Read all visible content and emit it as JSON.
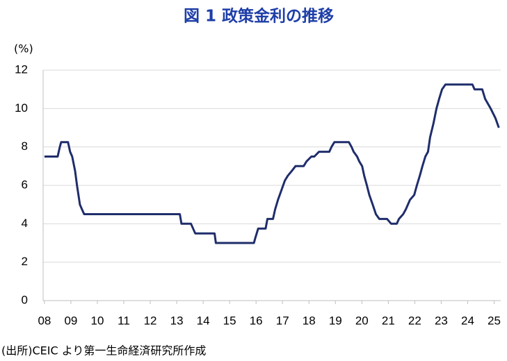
{
  "chart_data": {
    "type": "line",
    "title": "図 1  政策金利の推移",
    "y_label": "(%)",
    "source": "(出所)CEIC より第一生命経済研究所作成",
    "color": "#1f2d6b",
    "grid": true,
    "x": [
      2008.0,
      2008.5,
      2008.58,
      2008.63,
      2008.89,
      2008.97,
      2009.05,
      2009.16,
      2009.23,
      2009.34,
      2009.42,
      2009.5,
      2013.12,
      2013.18,
      2013.54,
      2013.7,
      2014.43,
      2014.48,
      2015.92,
      2015.97,
      2016.08,
      2016.36,
      2016.43,
      2016.64,
      2016.72,
      2016.83,
      2016.96,
      2017.09,
      2017.2,
      2017.35,
      2017.49,
      2017.8,
      2017.91,
      2018.09,
      2018.2,
      2018.38,
      2018.77,
      2018.85,
      2018.96,
      2019.51,
      2019.61,
      2019.69,
      2019.82,
      2019.9,
      2020.01,
      2020.09,
      2020.19,
      2020.28,
      2020.41,
      2020.53,
      2020.66,
      2020.95,
      2021.11,
      2021.32,
      2021.4,
      2021.56,
      2021.66,
      2021.82,
      2021.98,
      2022.08,
      2022.19,
      2022.29,
      2022.4,
      2022.5,
      2022.58,
      2022.71,
      2022.82,
      2022.92,
      2023.03,
      2023.16,
      2024.18,
      2024.26,
      2024.55,
      2024.66,
      2024.87,
      2025.05,
      2025.18
    ],
    "values": [
      7.5,
      7.5,
      8.0,
      8.25,
      8.25,
      7.75,
      7.5,
      6.75,
      6.0,
      5.0,
      4.75,
      4.5,
      4.5,
      4.0,
      4.0,
      3.5,
      3.5,
      3.0,
      3.0,
      3.25,
      3.75,
      3.75,
      4.25,
      4.25,
      4.75,
      5.25,
      5.75,
      6.25,
      6.5,
      6.75,
      7.0,
      7.0,
      7.25,
      7.5,
      7.5,
      7.75,
      7.75,
      8.0,
      8.25,
      8.25,
      8.0,
      7.75,
      7.5,
      7.25,
      7.0,
      6.5,
      6.0,
      5.5,
      5.0,
      4.5,
      4.25,
      4.25,
      4.0,
      4.0,
      4.25,
      4.5,
      4.75,
      5.25,
      5.5,
      6.0,
      6.5,
      7.0,
      7.5,
      7.75,
      8.5,
      9.25,
      10.0,
      10.5,
      11.0,
      11.25,
      11.25,
      11.0,
      11.0,
      10.5,
      10.0,
      9.5,
      9.0
    ],
    "xlim": [
      2007.95,
      2025.25
    ],
    "xticks": [
      {
        "value": 2008,
        "label": "08"
      },
      {
        "value": 2009,
        "label": "09"
      },
      {
        "value": 2010,
        "label": "10"
      },
      {
        "value": 2011,
        "label": "11"
      },
      {
        "value": 2012,
        "label": "12"
      },
      {
        "value": 2013,
        "label": "13"
      },
      {
        "value": 2014,
        "label": "14"
      },
      {
        "value": 2015,
        "label": "15"
      },
      {
        "value": 2016,
        "label": "16"
      },
      {
        "value": 2017,
        "label": "17"
      },
      {
        "value": 2018,
        "label": "18"
      },
      {
        "value": 2019,
        "label": "19"
      },
      {
        "value": 2020,
        "label": "20"
      },
      {
        "value": 2021,
        "label": "21"
      },
      {
        "value": 2022,
        "label": "22"
      },
      {
        "value": 2023,
        "label": "23"
      },
      {
        "value": 2024,
        "label": "24"
      },
      {
        "value": 2025,
        "label": "25"
      }
    ],
    "ylim": [
      0,
      12
    ],
    "yticks": [
      0,
      2,
      4,
      6,
      8,
      10,
      12
    ]
  }
}
